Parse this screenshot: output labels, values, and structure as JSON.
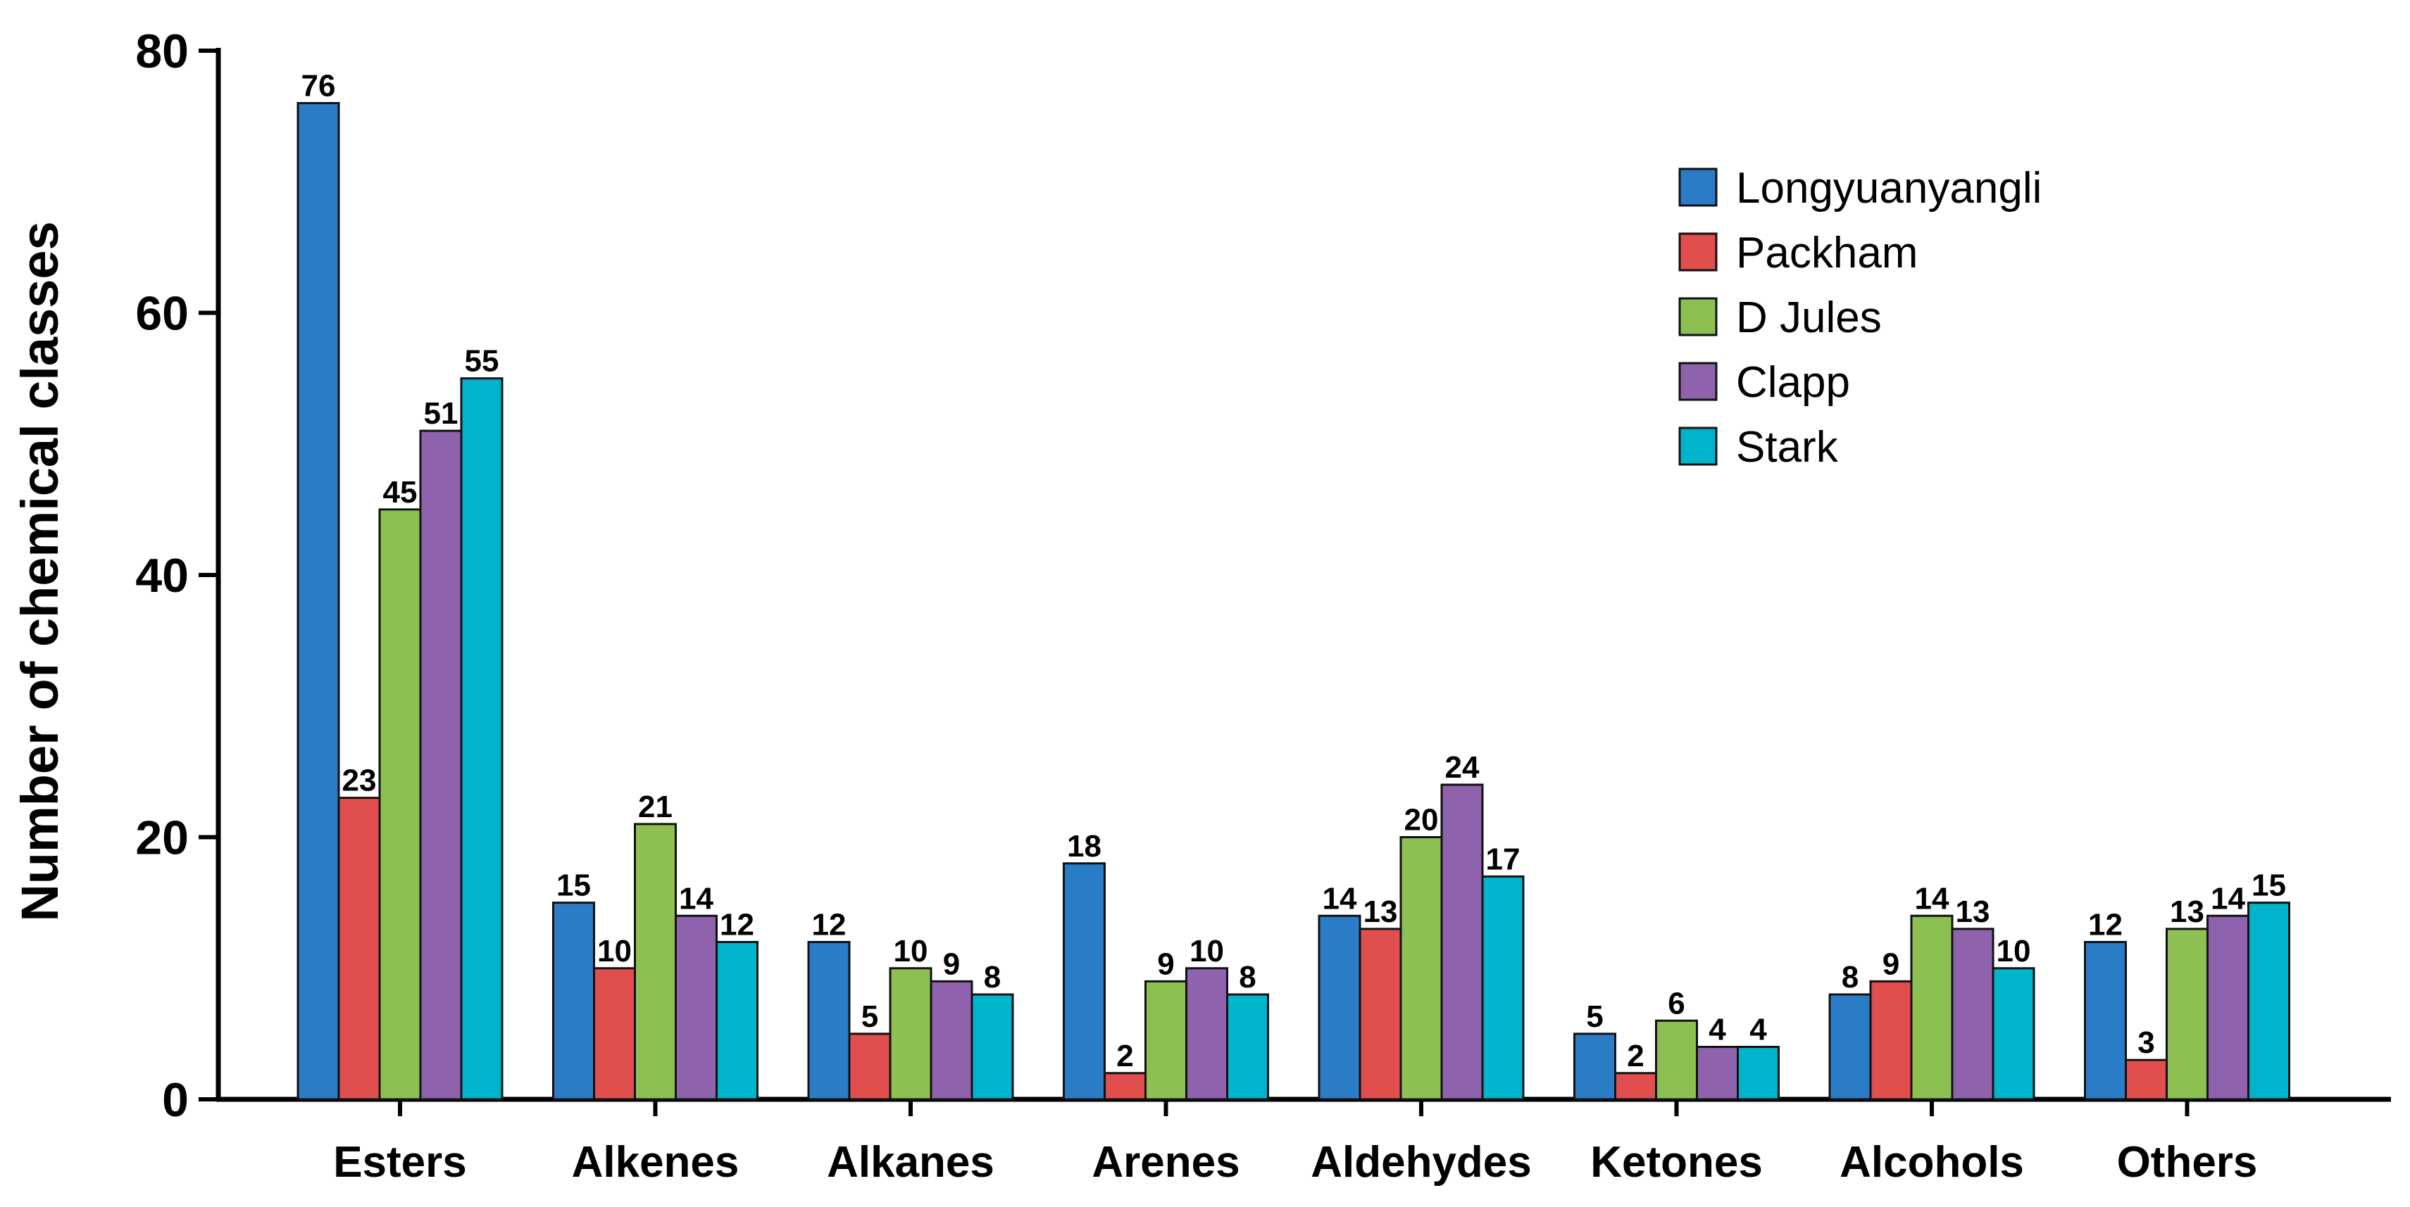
{
  "chart_data": {
    "type": "bar",
    "title": "",
    "xlabel": "",
    "ylabel": "Number of chemical classes",
    "ylim": [
      0,
      80
    ],
    "yticks": [
      "0",
      "20",
      "40",
      "60",
      "80"
    ],
    "categories": [
      "Esters",
      "Alkenes",
      "Alkanes",
      "Arenes",
      "Aldehydes",
      "Ketones",
      "Alcohols",
      "Others"
    ],
    "series": [
      {
        "name": "Longyuanyangli",
        "color": "#2a7cc6",
        "values": [
          76,
          15,
          12,
          18,
          14,
          5,
          8,
          12
        ]
      },
      {
        "name": "Packham",
        "color": "#e04e4e",
        "values": [
          23,
          10,
          5,
          2,
          13,
          2,
          9,
          3
        ]
      },
      {
        "name": "D Jules",
        "color": "#8cc152",
        "values": [
          45,
          21,
          10,
          9,
          20,
          6,
          14,
          13
        ]
      },
      {
        "name": "Clapp",
        "color": "#8e62ad",
        "values": [
          51,
          14,
          9,
          10,
          24,
          4,
          13,
          14
        ]
      },
      {
        "name": "Stark",
        "color": "#00b4cc",
        "values": [
          55,
          12,
          8,
          8,
          17,
          4,
          10,
          15
        ]
      }
    ],
    "legend_position": "top-right",
    "grid": false
  }
}
